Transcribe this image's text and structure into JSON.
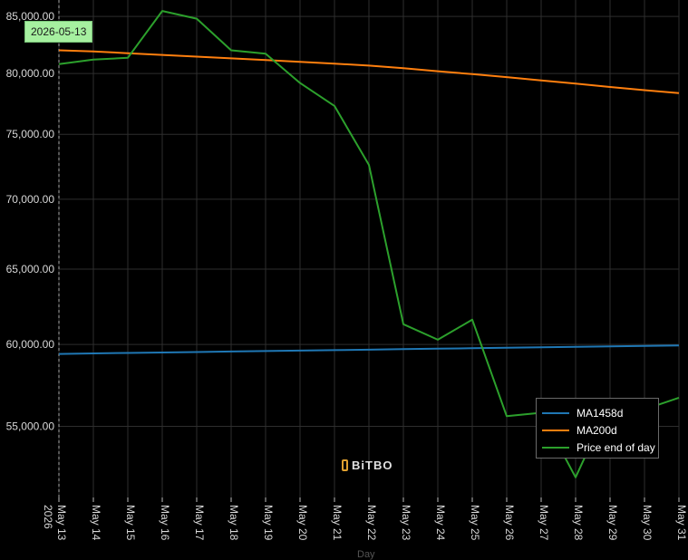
{
  "chart_data": {
    "type": "line",
    "x": [
      "2026\nMay 13",
      "May 14",
      "May 15",
      "May 16",
      "May 17",
      "May 18",
      "May 19",
      "May 20",
      "May 21",
      "May 22",
      "May 23",
      "May 24",
      "May 25",
      "May 26",
      "May 27",
      "May 28",
      "May 29",
      "May 30",
      "May 31"
    ],
    "series": [
      {
        "name": "MA1458d",
        "color": "#1f77b4",
        "values": [
          59400,
          59430,
          59460,
          59490,
          59520,
          59550,
          59580,
          59610,
          59640,
          59670,
          59700,
          59730,
          59760,
          59790,
          59820,
          59850,
          59880,
          59910,
          59940
        ]
      },
      {
        "name": "MA200d",
        "color": "#ff7f0e",
        "values": [
          82000,
          81900,
          81750,
          81600,
          81450,
          81300,
          81150,
          81000,
          80850,
          80680,
          80450,
          80200,
          79950,
          79700,
          79420,
          79150,
          78870,
          78600,
          78350
        ]
      },
      {
        "name": "Price end of day",
        "color": "#2ca02c",
        "values": [
          80800,
          81200,
          81350,
          85500,
          84800,
          82000,
          81700,
          79200,
          77300,
          72600,
          61300,
          60300,
          61600,
          55600,
          55800,
          52100,
          56400,
          56000,
          56700
        ]
      }
    ],
    "yticks": [
      55000,
      60000,
      65000,
      70000,
      75000,
      80000,
      85000
    ],
    "ytick_labels": [
      "55,000.00",
      "60,000.00",
      "65,000.00",
      "70,000.00",
      "75,000.00",
      "80,000.00",
      "85,000.00"
    ],
    "yscale": "log",
    "ylim": [
      51000,
      86500
    ],
    "xlabel": "Day",
    "grid": true,
    "legend_position": "bottom-right"
  },
  "hover_label": "2026-05-13",
  "watermark": "BiTBO"
}
